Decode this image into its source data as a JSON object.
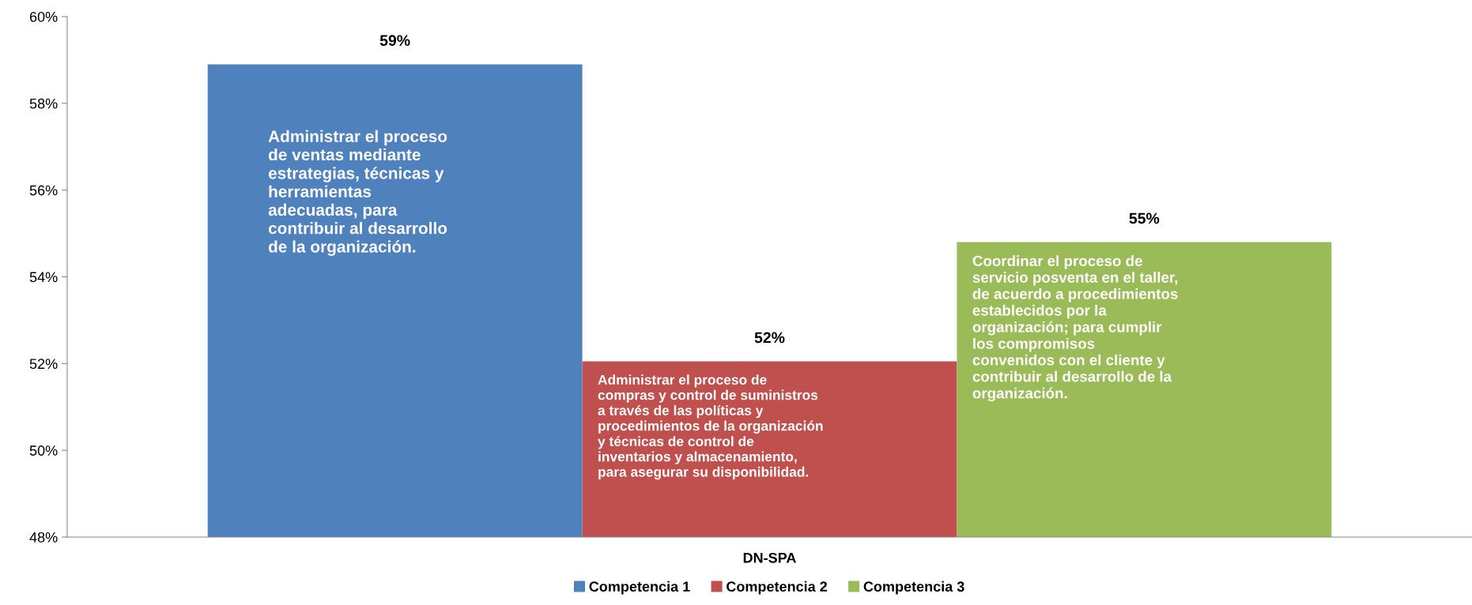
{
  "chart_data": {
    "type": "bar",
    "categories": [
      "DN-SPA"
    ],
    "series": [
      {
        "name": "Competencia 1",
        "color": "#4f81bd",
        "values": [
          58.9
        ],
        "value_labels": [
          "59%"
        ]
      },
      {
        "name": "Competencia 2",
        "color": "#c0504d",
        "values": [
          52.05
        ],
        "value_labels": [
          "52%"
        ]
      },
      {
        "name": "Competencia 3",
        "color": "#9bbb59",
        "values": [
          54.8
        ],
        "value_labels": [
          "55%"
        ]
      }
    ],
    "annotations": [
      "Administrar el proceso\nde ventas mediante\nestrategias, técnicas y\nherramientas\nadecuadas, para\ncontribuir al desarrollo\nde la organización.",
      "Administrar el proceso de\ncompras y control de suministros\na través de las políticas y\nprocedimientos de la organización\ny técnicas de control de\ninventarios y almacenamiento,\npara asegurar su disponibilidad.",
      "Coordinar el proceso de\nservicio posventa en el taller,\nde acuerdo a procedimientos\nestablecidos por la\norganización; para cumplir\nlos compromisos\nconvenidos con el cliente y\ncontribuir al desarrollo de la\norganización."
    ],
    "ylim": [
      48,
      60
    ],
    "yticks": [
      {
        "value": 48,
        "label": "48%"
      },
      {
        "value": 50,
        "label": "50%"
      },
      {
        "value": 52,
        "label": "52%"
      },
      {
        "value": 54,
        "label": "54%"
      },
      {
        "value": 56,
        "label": "56%"
      },
      {
        "value": 58,
        "label": "58%"
      },
      {
        "value": 60,
        "label": "60%"
      }
    ],
    "grid": false,
    "legend": "bottom"
  }
}
